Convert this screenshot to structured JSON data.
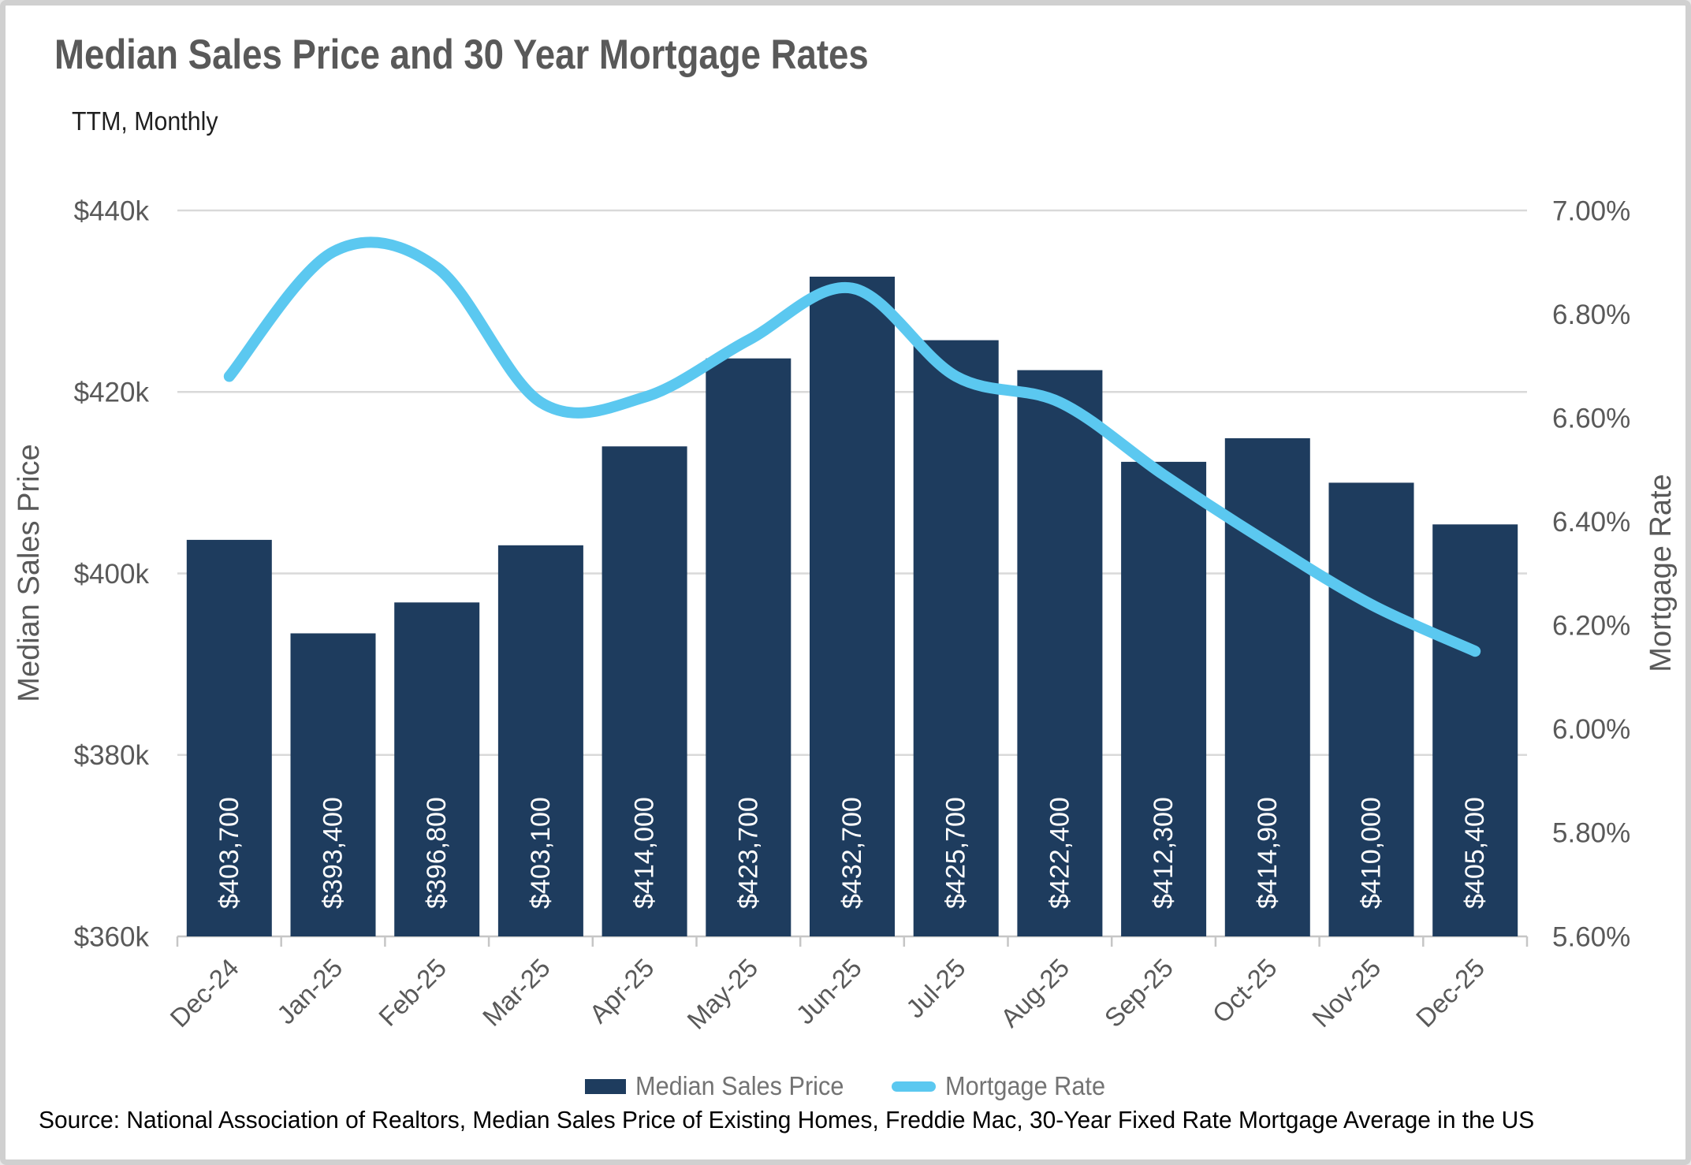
{
  "header": {
    "title": "Median Sales Price and 30 Year Mortgage Rates",
    "subtitle": "TTM, Monthly"
  },
  "legend": {
    "bar_label": "Median Sales Price",
    "line_label": "Mortgage Rate"
  },
  "source": "Source: National Association of Realtors, Median Sales Price of Existing Homes, Freddie Mac, 30-Year Fixed Rate Mortgage Average in the US",
  "colors": {
    "bar": "#1e3c5e",
    "line": "#5bc8f0",
    "gridline": "#d9d9d9",
    "axis_line": "#c6c6c6",
    "tick_text": "#595959",
    "title_text": "#595959",
    "legend_text": "#737373",
    "bar_value_text": "#ffffff",
    "source_text": "#000000"
  },
  "chart_data": {
    "type": "combo",
    "categories": [
      "Dec-24",
      "Jan-25",
      "Feb-25",
      "Mar-25",
      "Apr-25",
      "May-25",
      "Jun-25",
      "Jul-25",
      "Aug-25",
      "Sep-25",
      "Oct-25",
      "Nov-25",
      "Dec-25"
    ],
    "series": [
      {
        "name": "Median Sales Price",
        "type": "bar",
        "axis": "left",
        "values": [
          403700,
          393400,
          396800,
          403100,
          414000,
          423700,
          432700,
          425700,
          422400,
          412300,
          414900,
          410000,
          405400
        ],
        "labels": [
          "$403,700",
          "$393,400",
          "$396,800",
          "$403,100",
          "$414,000",
          "$423,700",
          "$432,700",
          "$425,700",
          "$422,400",
          "$412,300",
          "$414,900",
          "$410,000",
          "$405,400"
        ]
      },
      {
        "name": "Mortgage Rate",
        "type": "line",
        "axis": "right",
        "smooth": true,
        "values": [
          6.68,
          6.92,
          6.89,
          6.63,
          6.64,
          6.75,
          6.85,
          6.68,
          6.63,
          6.49,
          6.36,
          6.24,
          6.15
        ]
      }
    ],
    "left_axis": {
      "title": "Median Sales Price",
      "min": 360000,
      "max": 440000,
      "step": 20000,
      "tick_labels": [
        "$360k",
        "$380k",
        "$400k",
        "$420k",
        "$440k"
      ]
    },
    "right_axis": {
      "title": "Mortgage Rate",
      "min": 5.6,
      "max": 7.0,
      "step": 0.2,
      "tick_labels": [
        "5.60%",
        "5.80%",
        "6.00%",
        "6.20%",
        "6.40%",
        "6.60%",
        "6.80%",
        "7.00%"
      ]
    },
    "grid": "horizontal, left-axis ticks only",
    "legend_position": "bottom"
  }
}
